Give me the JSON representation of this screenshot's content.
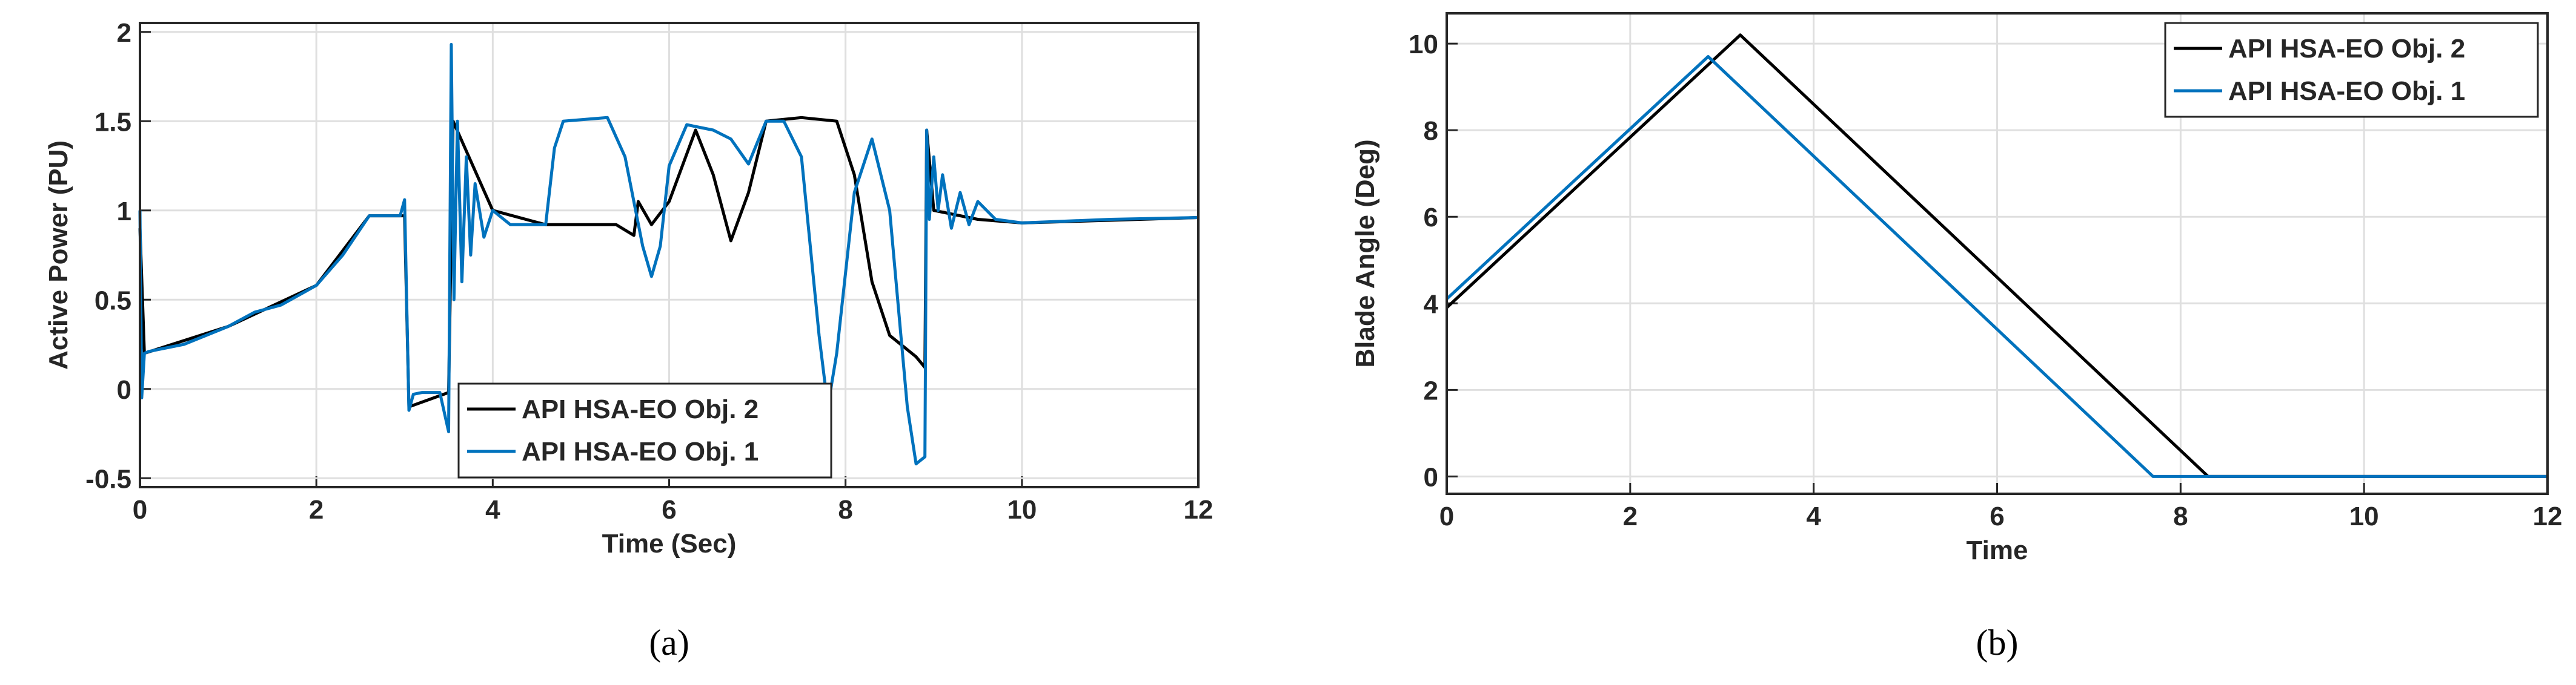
{
  "chart_data": [
    {
      "type": "line",
      "panel_label": "(a)",
      "xlabel": "Time (Sec)",
      "ylabel": "Active Power (PU)",
      "xlim": [
        0,
        12
      ],
      "ylim": [
        -0.55,
        2.05
      ],
      "xticks": [
        0,
        2,
        4,
        6,
        8,
        10,
        12
      ],
      "yticks": [
        -0.5,
        0,
        0.5,
        1,
        1.5,
        2
      ],
      "grid": true,
      "legend": "lower center",
      "series": [
        {
          "name": "API HSA-EO Obj. 2",
          "color": "#000000",
          "x": [
            0,
            0.05,
            1,
            2,
            2.6,
            3.0,
            3.05,
            3.5,
            3.55,
            4.0,
            4.6,
            5.4,
            5.6,
            5.65,
            5.8,
            6.0,
            6.3,
            6.5,
            6.7,
            6.9,
            7.1,
            7.5,
            7.9,
            8.1,
            8.3,
            8.5,
            8.8,
            8.9,
            8.92,
            9.0,
            9.5,
            10,
            12
          ],
          "values": [
            0.9,
            0.2,
            0.35,
            0.58,
            0.97,
            0.97,
            -0.1,
            -0.02,
            1.5,
            1.0,
            0.92,
            0.92,
            0.86,
            1.05,
            0.92,
            1.05,
            1.45,
            1.2,
            0.83,
            1.1,
            1.5,
            1.52,
            1.5,
            1.2,
            0.6,
            0.3,
            0.18,
            0.12,
            1.45,
            1.0,
            0.95,
            0.93,
            0.96
          ]
        },
        {
          "name": "API HSA-EO Obj. 1",
          "color": "#0072bd",
          "x": [
            0,
            0.02,
            0.05,
            0.1,
            0.5,
            1.0,
            1.3,
            1.6,
            2.0,
            2.3,
            2.6,
            2.95,
            3.0,
            3.05,
            3.1,
            3.2,
            3.4,
            3.5,
            3.53,
            3.56,
            3.6,
            3.65,
            3.7,
            3.75,
            3.8,
            3.9,
            4.0,
            4.2,
            4.6,
            4.7,
            4.8,
            5.3,
            5.5,
            5.7,
            5.8,
            5.9,
            6.0,
            6.2,
            6.5,
            6.7,
            6.9,
            7.1,
            7.3,
            7.5,
            7.7,
            7.8,
            7.9,
            8.1,
            8.3,
            8.5,
            8.7,
            8.8,
            8.9,
            8.92,
            8.95,
            9.0,
            9.05,
            9.1,
            9.2,
            9.3,
            9.4,
            9.5,
            9.7,
            10.0,
            11,
            12
          ],
          "values": [
            1.0,
            -0.05,
            0.2,
            0.21,
            0.25,
            0.35,
            0.43,
            0.47,
            0.58,
            0.75,
            0.97,
            0.97,
            1.06,
            -0.12,
            -0.03,
            -0.02,
            -0.02,
            -0.24,
            1.93,
            0.5,
            1.5,
            0.6,
            1.3,
            0.75,
            1.15,
            0.85,
            1.0,
            0.92,
            0.92,
            1.35,
            1.5,
            1.52,
            1.3,
            0.8,
            0.63,
            0.8,
            1.25,
            1.48,
            1.45,
            1.4,
            1.26,
            1.5,
            1.5,
            1.3,
            0.3,
            -0.1,
            0.2,
            1.1,
            1.4,
            1.0,
            -0.1,
            -0.42,
            -0.38,
            1.45,
            0.95,
            1.3,
            1.0,
            1.2,
            0.9,
            1.1,
            0.92,
            1.05,
            0.95,
            0.93,
            0.95,
            0.96
          ]
        }
      ]
    },
    {
      "type": "line",
      "panel_label": "(b)",
      "xlabel": "Time",
      "ylabel": "Blade Angle (Deg)",
      "xlim": [
        0,
        12
      ],
      "ylim": [
        -0.4,
        10.7
      ],
      "xticks": [
        0,
        2,
        4,
        6,
        8,
        10,
        12
      ],
      "yticks": [
        0,
        2,
        4,
        6,
        8,
        10
      ],
      "grid": true,
      "legend": "upper right",
      "series": [
        {
          "name": "API HSA-EO Obj. 2",
          "color": "#000000",
          "x": [
            0,
            3.2,
            8.3,
            12
          ],
          "values": [
            3.9,
            10.2,
            0,
            0
          ]
        },
        {
          "name": "API HSA-EO Obj. 1",
          "color": "#0072bd",
          "x": [
            0,
            2.85,
            7.7,
            12
          ],
          "values": [
            4.1,
            9.7,
            0,
            0
          ]
        }
      ]
    }
  ]
}
